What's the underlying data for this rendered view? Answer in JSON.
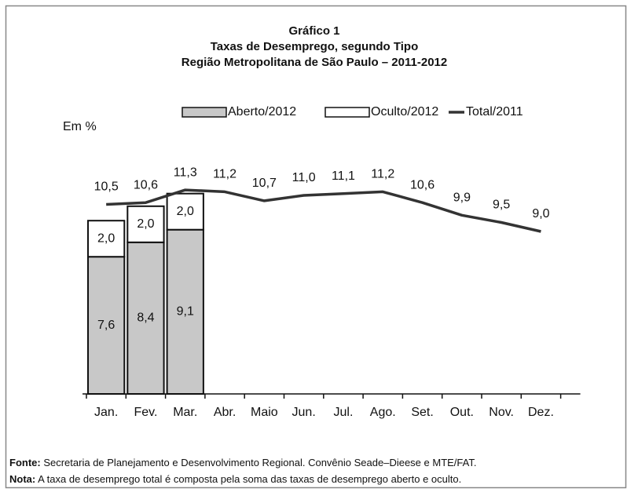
{
  "chart_data": {
    "type": "bar",
    "title": "Gráfico 1",
    "subtitle": "Taxas de Desemprego, segundo Tipo",
    "subtitle2": "Região Metropolitana de São Paulo – 2011-2012",
    "y_label": "Em %",
    "categories": [
      "Jan.",
      "Fev.",
      "Mar.",
      "Abr.",
      "Maio",
      "Jun.",
      "Jul.",
      "Ago.",
      "Set.",
      "Out.",
      "Nov.",
      "Dez."
    ],
    "ylim": [
      0,
      14
    ],
    "series": [
      {
        "name": "Aberto/2012",
        "type": "bar",
        "color": "#c8c8c8",
        "values": [
          7.6,
          8.4,
          9.1,
          null,
          null,
          null,
          null,
          null,
          null,
          null,
          null,
          null
        ],
        "value_labels": [
          "7,6",
          "8,4",
          "9,1",
          null,
          null,
          null,
          null,
          null,
          null,
          null,
          null,
          null
        ]
      },
      {
        "name": "Oculto/2012",
        "type": "bar",
        "color": "#ffffff",
        "values": [
          2.0,
          2.0,
          2.0,
          null,
          null,
          null,
          null,
          null,
          null,
          null,
          null,
          null
        ],
        "value_labels": [
          "2,0",
          "2,0",
          "2,0",
          null,
          null,
          null,
          null,
          null,
          null,
          null,
          null,
          null
        ]
      },
      {
        "name": "Total/2011",
        "type": "line",
        "color": "#333333",
        "values": [
          10.5,
          10.6,
          11.3,
          11.2,
          10.7,
          11.0,
          11.1,
          11.2,
          10.6,
          9.9,
          9.5,
          9.0
        ],
        "value_labels": [
          "10,5",
          "10,6",
          "11,3",
          "11,2",
          "10,7",
          "11,0",
          "11,1",
          "11,2",
          "10,6",
          "9,9",
          "9,5",
          "9,0"
        ]
      }
    ]
  },
  "notes": [
    {
      "label": "Fonte:",
      "text": " Secretaria de Planejamento e Desenvolvimento Regional. Convênio Seade–Dieese e MTE/FAT."
    },
    {
      "label": "Nota:",
      "text": " A taxa de desemprego total é composta pela soma das taxas de desemprego aberto e oculto."
    }
  ]
}
